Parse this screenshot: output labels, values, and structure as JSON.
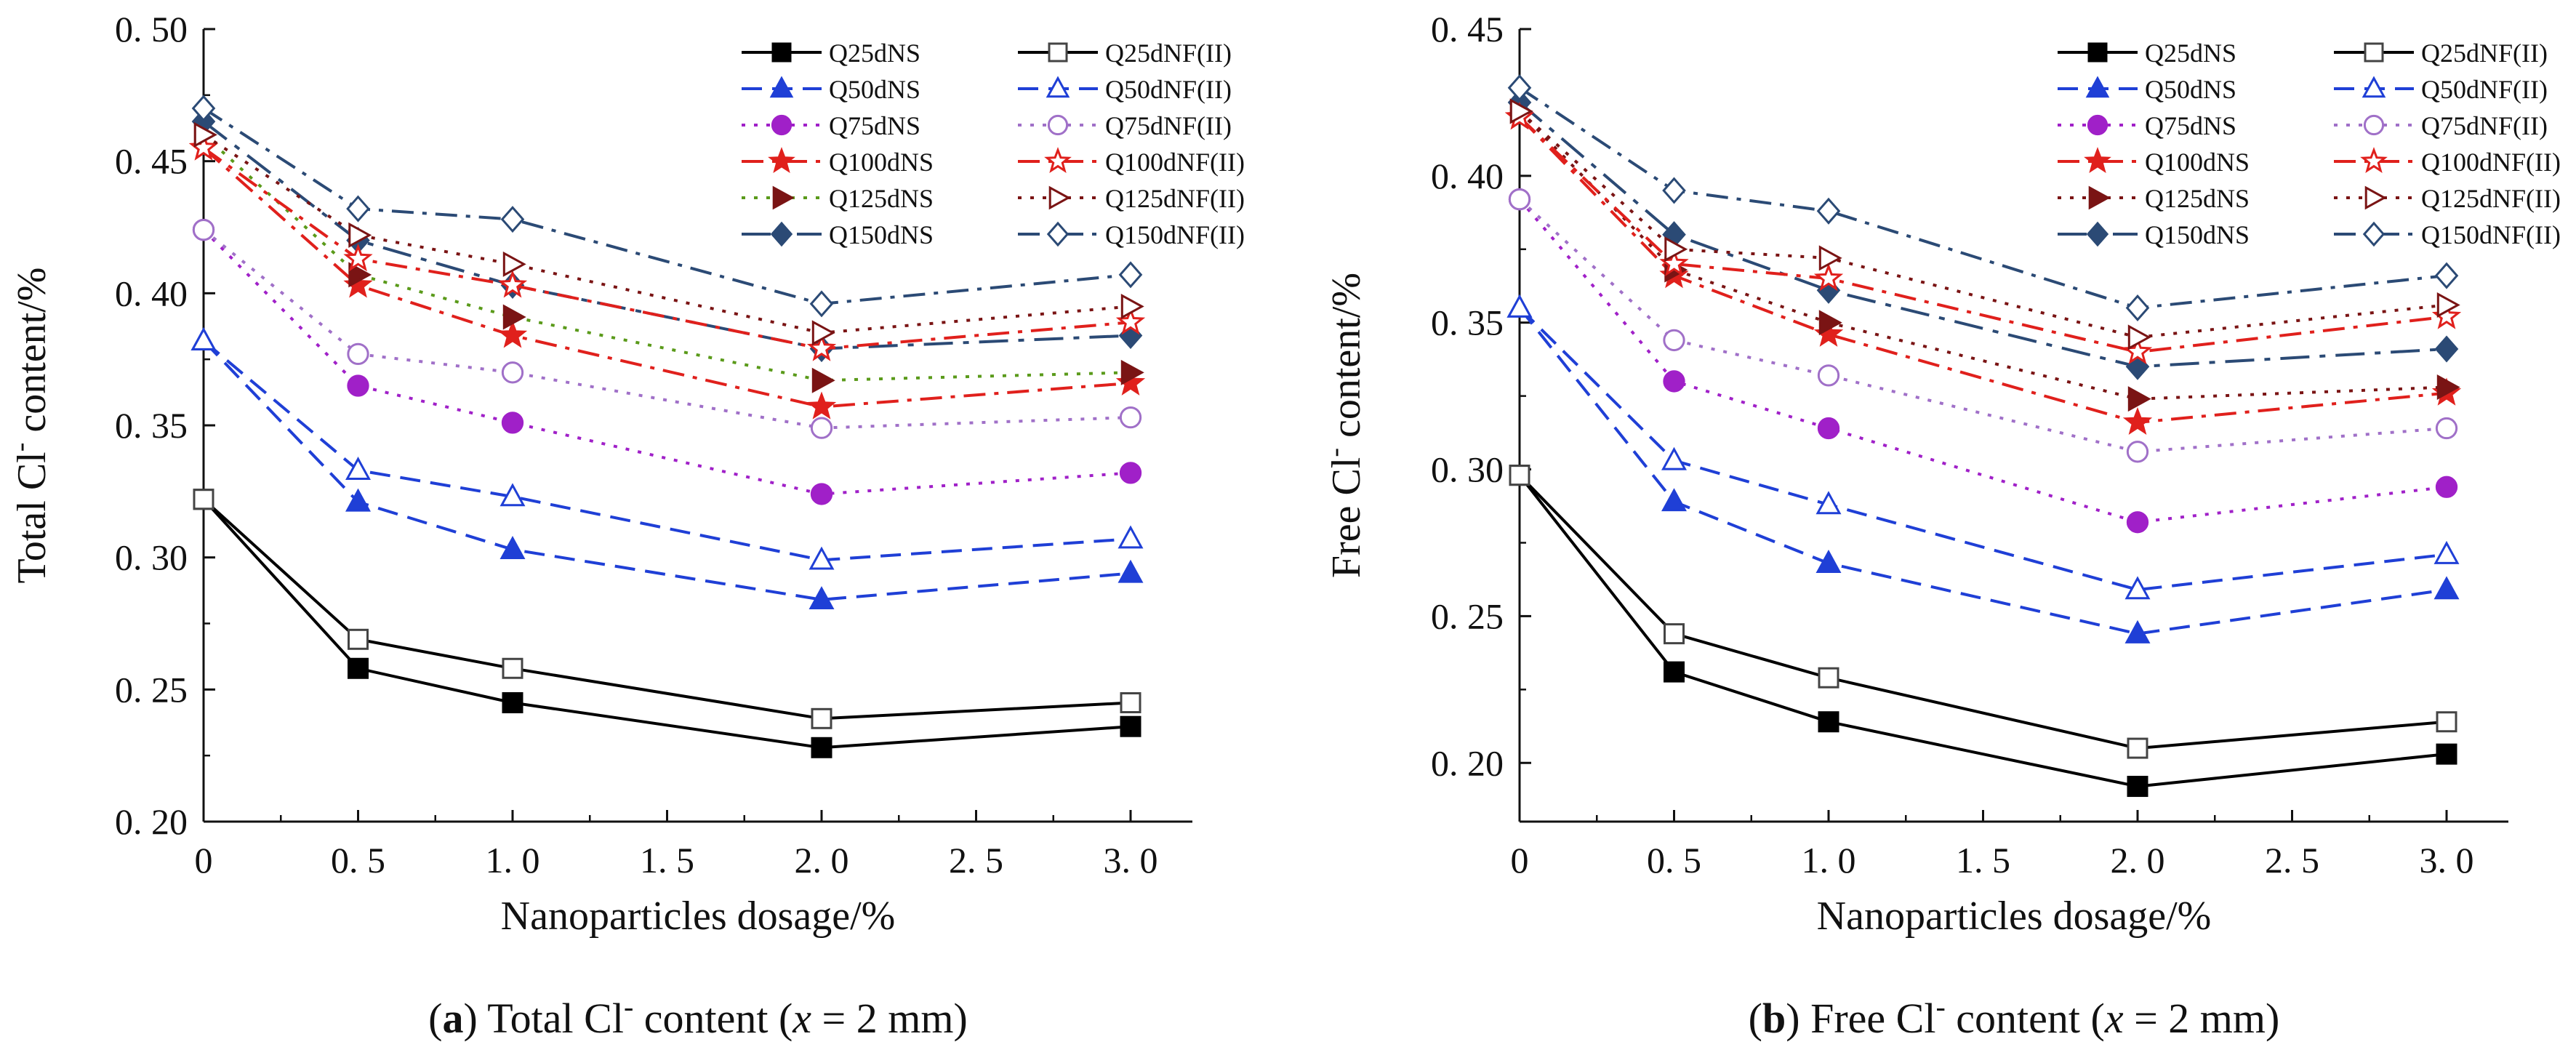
{
  "chart_data": [
    {
      "type": "line",
      "caption_letter": "a",
      "caption_text": " Total Cl",
      "caption_sup": "-",
      "caption_rest": " content (",
      "caption_var": "x",
      "caption_end": " = 2 mm)",
      "ylabel": "Total Cl",
      "ylabel_sup": "-",
      "ylabel_rest": " content/%",
      "xlabel": "Nanoparticles dosage/%",
      "xlim": [
        0,
        3.2
      ],
      "ylim": [
        0.2,
        0.5
      ],
      "xticks": [
        "0",
        "0. 5",
        "1. 0",
        "1. 5",
        "2. 0",
        "2. 5",
        "3. 0"
      ],
      "xtick_values": [
        0,
        0.5,
        1.0,
        1.5,
        2.0,
        2.5,
        3.0
      ],
      "yticks": [
        "0. 20",
        "0. 25",
        "0. 30",
        "0. 35",
        "0. 40",
        "0. 45",
        "0. 50"
      ],
      "ytick_values": [
        0.2,
        0.25,
        0.3,
        0.35,
        0.4,
        0.45,
        0.5
      ],
      "x": [
        0,
        0.5,
        1.0,
        2.0,
        3.0
      ],
      "legend_position": "top-right",
      "series": [
        {
          "name": "Q25dNS",
          "values": [
            0.322,
            0.258,
            0.245,
            0.228,
            0.236
          ],
          "color": "#000000",
          "marker": "square",
          "filled": true,
          "dash": "solid"
        },
        {
          "name": "Q50dNS",
          "values": [
            0.382,
            0.321,
            0.303,
            0.284,
            0.294
          ],
          "color": "#1f3fd6",
          "marker": "triangle",
          "filled": true,
          "dash": "dash"
        },
        {
          "name": "Q75dNS",
          "values": [
            0.424,
            0.365,
            0.351,
            0.324,
            0.332
          ],
          "color": "#a020c8",
          "marker": "circle",
          "filled": true,
          "dash": "dot"
        },
        {
          "name": "Q100dNS",
          "values": [
            0.455,
            0.403,
            0.384,
            0.357,
            0.366
          ],
          "color": "#e0201c",
          "marker": "star",
          "filled": true,
          "dash": "dashdot"
        },
        {
          "name": "Q125dNS",
          "values": [
            0.46,
            0.407,
            0.391,
            0.367,
            0.37
          ],
          "color": "#7a1414",
          "marker": "triangle-right",
          "filled": true,
          "dash": "dotgreen"
        },
        {
          "name": "Q150dNS",
          "values": [
            0.465,
            0.42,
            0.403,
            0.379,
            0.384
          ],
          "color": "#2b4a75",
          "marker": "diamond",
          "filled": true,
          "dash": "longdash"
        },
        {
          "name": "Q25dNF(II)",
          "values": [
            0.322,
            0.269,
            0.258,
            0.239,
            0.245
          ],
          "color": "#000000",
          "marker": "square",
          "filled": false,
          "dash": "solid"
        },
        {
          "name": "Q50dNF(II)",
          "values": [
            0.382,
            0.333,
            0.323,
            0.299,
            0.307
          ],
          "color": "#1f3fd6",
          "marker": "triangle",
          "filled": false,
          "dash": "dash"
        },
        {
          "name": "Q75dNF(II)",
          "values": [
            0.424,
            0.377,
            0.37,
            0.349,
            0.353
          ],
          "color": "#a070c8",
          "marker": "circle",
          "filled": false,
          "dash": "dot"
        },
        {
          "name": "Q100dNF(II)",
          "values": [
            0.455,
            0.413,
            0.403,
            0.379,
            0.389
          ],
          "color": "#e0201c",
          "marker": "star",
          "filled": false,
          "dash": "dashdot"
        },
        {
          "name": "Q125dNF(II)",
          "values": [
            0.46,
            0.422,
            0.411,
            0.385,
            0.395
          ],
          "color": "#7a1414",
          "marker": "triangle-right",
          "filled": false,
          "dash": "dot"
        },
        {
          "name": "Q150dNF(II)",
          "values": [
            0.47,
            0.432,
            0.428,
            0.396,
            0.407
          ],
          "color": "#2b4a75",
          "marker": "diamond",
          "filled": false,
          "dash": "dashdot"
        }
      ]
    },
    {
      "type": "line",
      "caption_letter": "b",
      "caption_text": " Free Cl",
      "caption_sup": "-",
      "caption_rest": " content (",
      "caption_var": "x",
      "caption_end": " = 2 mm)",
      "ylabel": "Free Cl",
      "ylabel_sup": "-",
      "ylabel_rest": " content/%",
      "xlabel": "Nanoparticles dosage/%",
      "xlim": [
        0,
        3.2
      ],
      "ylim": [
        0.18,
        0.45
      ],
      "xticks": [
        "0",
        "0. 5",
        "1. 0",
        "1. 5",
        "2. 0",
        "2. 5",
        "3. 0"
      ],
      "xtick_values": [
        0,
        0.5,
        1.0,
        1.5,
        2.0,
        2.5,
        3.0
      ],
      "yticks": [
        "0. 20",
        "0. 25",
        "0. 30",
        "0. 35",
        "0. 40",
        "0. 45"
      ],
      "ytick_values": [
        0.2,
        0.25,
        0.3,
        0.35,
        0.4,
        0.45
      ],
      "x": [
        0,
        0.5,
        1.0,
        2.0,
        3.0
      ],
      "legend_position": "top-right",
      "series": [
        {
          "name": "Q25dNS",
          "values": [
            0.298,
            0.231,
            0.214,
            0.192,
            0.203
          ],
          "color": "#000000",
          "marker": "square",
          "filled": true,
          "dash": "solid"
        },
        {
          "name": "Q50dNS",
          "values": [
            0.355,
            0.289,
            0.268,
            0.244,
            0.259
          ],
          "color": "#1f3fd6",
          "marker": "triangle",
          "filled": true,
          "dash": "dash"
        },
        {
          "name": "Q75dNS",
          "values": [
            0.392,
            0.33,
            0.314,
            0.282,
            0.294
          ],
          "color": "#a020c8",
          "marker": "circle",
          "filled": true,
          "dash": "dot"
        },
        {
          "name": "Q100dNS",
          "values": [
            0.42,
            0.366,
            0.346,
            0.316,
            0.326
          ],
          "color": "#e0201c",
          "marker": "star",
          "filled": true,
          "dash": "dashdot"
        },
        {
          "name": "Q125dNS",
          "values": [
            0.422,
            0.368,
            0.35,
            0.324,
            0.328
          ],
          "color": "#7a1414",
          "marker": "triangle-right",
          "filled": true,
          "dash": "dot"
        },
        {
          "name": "Q150dNS",
          "values": [
            0.425,
            0.38,
            0.361,
            0.335,
            0.341
          ],
          "color": "#2b4a75",
          "marker": "diamond",
          "filled": true,
          "dash": "longdash"
        },
        {
          "name": "Q25dNF(II)",
          "values": [
            0.298,
            0.244,
            0.229,
            0.205,
            0.214
          ],
          "color": "#000000",
          "marker": "square",
          "filled": false,
          "dash": "solid"
        },
        {
          "name": "Q50dNF(II)",
          "values": [
            0.355,
            0.303,
            0.288,
            0.259,
            0.271
          ],
          "color": "#1f3fd6",
          "marker": "triangle",
          "filled": false,
          "dash": "dash"
        },
        {
          "name": "Q75dNF(II)",
          "values": [
            0.392,
            0.344,
            0.332,
            0.306,
            0.314
          ],
          "color": "#a070c8",
          "marker": "circle",
          "filled": false,
          "dash": "dot"
        },
        {
          "name": "Q100dNF(II)",
          "values": [
            0.42,
            0.37,
            0.365,
            0.34,
            0.352
          ],
          "color": "#e0201c",
          "marker": "star",
          "filled": false,
          "dash": "dashdot"
        },
        {
          "name": "Q125dNF(II)",
          "values": [
            0.422,
            0.375,
            0.372,
            0.345,
            0.356
          ],
          "color": "#7a1414",
          "marker": "triangle-right",
          "filled": false,
          "dash": "dot"
        },
        {
          "name": "Q150dNF(II)",
          "values": [
            0.43,
            0.395,
            0.388,
            0.355,
            0.366
          ],
          "color": "#2b4a75",
          "marker": "diamond",
          "filled": false,
          "dash": "dashdot"
        }
      ]
    }
  ]
}
